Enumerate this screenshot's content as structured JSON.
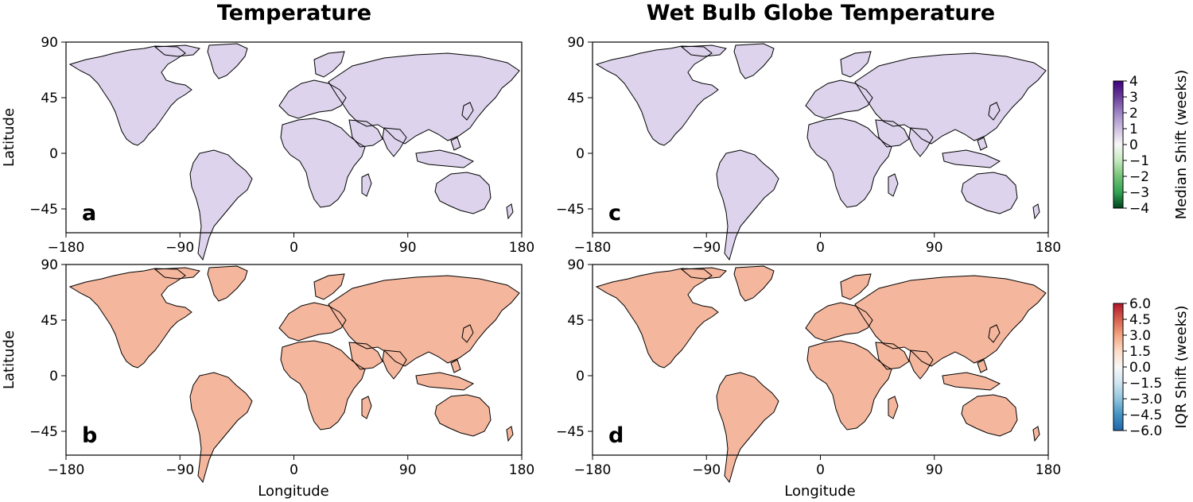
{
  "titles": {
    "left": "Temperature",
    "right": "Wet Bulb Globe Temperature"
  },
  "axes": {
    "xlabel": "Longitude",
    "ylabel": "Latitude",
    "xticks": [
      "−180",
      "−90",
      "0",
      "90",
      "180"
    ],
    "yticks": [
      "90",
      "45",
      "0",
      "−45"
    ]
  },
  "panels": [
    {
      "id": "a",
      "label": "a",
      "variable": "Temperature",
      "metric": "median"
    },
    {
      "id": "b",
      "label": "b",
      "variable": "Temperature",
      "metric": "iqr"
    },
    {
      "id": "c",
      "label": "c",
      "variable": "Wet Bulb Globe Temperature",
      "metric": "median"
    },
    {
      "id": "d",
      "label": "d",
      "variable": "Wet Bulb Globe Temperature",
      "metric": "iqr"
    }
  ],
  "colorbars": {
    "median": {
      "label": "Median Shift (weeks)",
      "ticks": [
        "4",
        "3",
        "2",
        "1",
        "0",
        "−1",
        "−2",
        "−3",
        "−4"
      ],
      "colors": [
        "#3f007d",
        "#6a3d9a",
        "#9e85c4",
        "#cdbfe0",
        "#f7f7f7",
        "#c7e9c0",
        "#74c476",
        "#31a354",
        "#00441b"
      ]
    },
    "iqr": {
      "label": "IQR Shift (weeks)",
      "ticks": [
        "6.0",
        "4.5",
        "3.0",
        "1.5",
        "0.0",
        "−1.5",
        "−3.0",
        "−4.5",
        "−6.0"
      ],
      "colors": [
        "#b2182b",
        "#d6604d",
        "#f4a582",
        "#fddbc7",
        "#f7f7f7",
        "#d1e5f0",
        "#92c5de",
        "#4393c3",
        "#2166ac"
      ]
    }
  },
  "palette": {
    "median_purple": "#b79fd3",
    "median_dark_purple": "#5b2a8c",
    "median_green": "#c9e8c4",
    "median_dark_green": "#1f7a3a",
    "iqr_salmon": "#f0a083",
    "iqr_red": "#c0122a",
    "iqr_blue": "#92b4e8",
    "hatch": "#000000"
  }
}
